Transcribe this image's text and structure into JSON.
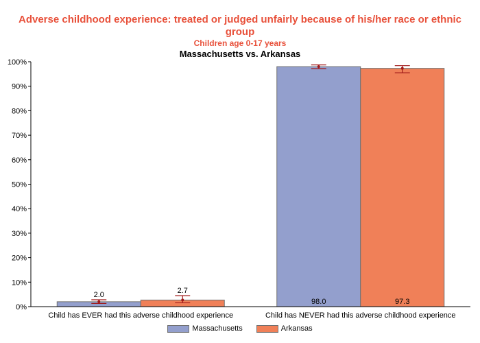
{
  "chart_data": {
    "type": "bar",
    "title": "Adverse childhood experience: treated or judged unfairly because of his/her race or ethnic group",
    "title_line1": "Adverse childhood experience: treated or judged unfairly because of his/her race or ethnic",
    "title_line2": "group",
    "subtitle": "Children age 0-17 years",
    "subtitle2": "Massachusetts vs. Arkansas",
    "categories": [
      "Child has EVER had this adverse childhood experience",
      "Child has NEVER had this adverse childhood experience"
    ],
    "series": [
      {
        "name": "Massachusetts",
        "color": "#939fcd",
        "values": [
          2.0,
          98.0
        ],
        "labels": [
          "2.0",
          "98.0"
        ],
        "ci_low": [
          1.3,
          97.2
        ],
        "ci_high": [
          2.8,
          98.7
        ]
      },
      {
        "name": "Arkansas",
        "color": "#f08058",
        "values": [
          2.7,
          97.3
        ],
        "labels": [
          "2.7",
          "97.3"
        ],
        "ci_low": [
          1.6,
          95.5
        ],
        "ci_high": [
          4.5,
          98.4
        ]
      }
    ],
    "ylim": [
      0,
      100
    ],
    "yticks": [
      "0%",
      "10%",
      "20%",
      "30%",
      "40%",
      "50%",
      "60%",
      "70%",
      "80%",
      "90%",
      "100%"
    ],
    "legend_position": "bottom"
  }
}
